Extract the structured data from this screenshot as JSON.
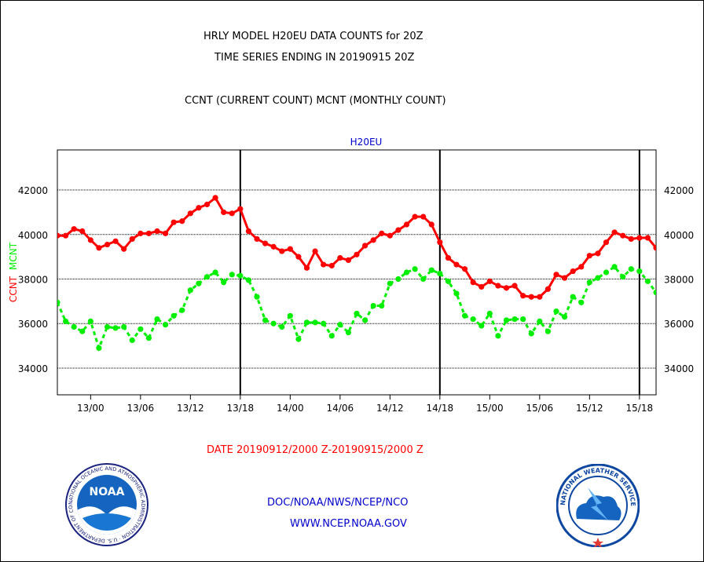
{
  "header": {
    "title_line1": "HRLY MODEL H20EU DATA COUNTS for 20Z",
    "title_line2": "TIME SERIES ENDING IN 20190915 20Z",
    "subtitle": "CCNT (CURRENT COUNT) MCNT (MONTHLY COUNT)"
  },
  "footer": {
    "date_range": "DATE 20190912/2000 Z-20190915/2000 Z",
    "org_line": "DOC/NOAA/NWS/NCEP/NCO",
    "url_line": "WWW.NCEP.NOAA.GOV",
    "noaa_logo_text": "NOAA",
    "noaa_ring_text": "NATIONAL OCEANIC AND ATMOSPHERIC ADMINISTRATION · U.S. DEPARTMENT OF COMMERCE",
    "nws_ring_text": "NATIONAL WEATHER SERVICE"
  },
  "colors": {
    "ccnt": "#ff0000",
    "mcnt": "#00ee00",
    "dataset_label": "#0000cc",
    "footer_text": "#0000cc"
  },
  "chart_data": {
    "type": "line",
    "title": "H20EU",
    "ylabel_left": [
      "CCNT",
      "MCNT"
    ],
    "ylim": [
      32800,
      43800
    ],
    "yticks": [
      34000,
      36000,
      38000,
      40000,
      42000
    ],
    "x_unit": "hours from 2019-09-12 20Z",
    "xlim": [
      0,
      72
    ],
    "xticks": [
      {
        "x": 4,
        "label": "13/00"
      },
      {
        "x": 10,
        "label": "13/06"
      },
      {
        "x": 16,
        "label": "13/12"
      },
      {
        "x": 22,
        "label": "13/18"
      },
      {
        "x": 28,
        "label": "14/00"
      },
      {
        "x": 34,
        "label": "14/06"
      },
      {
        "x": 40,
        "label": "14/12"
      },
      {
        "x": 46,
        "label": "14/18"
      },
      {
        "x": 52,
        "label": "15/00"
      },
      {
        "x": 58,
        "label": "15/06"
      },
      {
        "x": 64,
        "label": "15/12"
      },
      {
        "x": 70,
        "label": "15/18"
      }
    ],
    "day_dividers": [
      22,
      46,
      70
    ],
    "grid": true,
    "series": [
      {
        "name": "CCNT",
        "style": "solid",
        "values": [
          39950,
          39950,
          40250,
          40150,
          39750,
          39400,
          39550,
          39700,
          39350,
          39800,
          40050,
          40050,
          40150,
          40050,
          40550,
          40600,
          40950,
          41200,
          41350,
          41650,
          41000,
          40950,
          41150,
          40150,
          39800,
          39600,
          39450,
          39250,
          39350,
          39000,
          38500,
          39250,
          38650,
          38600,
          38950,
          38850,
          39100,
          39500,
          39750,
          40050,
          39950,
          40200,
          40450,
          40800,
          40800,
          40450,
          39650,
          38950,
          38650,
          38450,
          37850,
          37650,
          37900,
          37700,
          37600,
          37700,
          37250,
          37200,
          37200,
          37550,
          38200,
          38050,
          38350,
          38550,
          39050,
          39150,
          39650,
          40100,
          39950,
          39800,
          39850,
          39850,
          39400
        ]
      },
      {
        "name": "MCNT",
        "style": "dashed",
        "values": [
          36950,
          36100,
          35850,
          35650,
          36100,
          34900,
          35850,
          35800,
          35850,
          35250,
          35750,
          35350,
          36200,
          35950,
          36350,
          36600,
          37500,
          37800,
          38100,
          38300,
          37850,
          38200,
          38150,
          37950,
          37200,
          36150,
          36000,
          35850,
          36350,
          35300,
          36050,
          36050,
          36000,
          35450,
          35950,
          35600,
          36450,
          36150,
          36800,
          36800,
          37800,
          38000,
          38300,
          38450,
          38000,
          38400,
          38250,
          37900,
          37350,
          36350,
          36200,
          35900,
          36450,
          35450,
          36150,
          36200,
          36200,
          35550,
          36100,
          35650,
          36550,
          36300,
          37200,
          36950,
          37850,
          38050,
          38300,
          38550,
          38100,
          38450,
          38350,
          37900,
          37400
        ]
      }
    ]
  }
}
